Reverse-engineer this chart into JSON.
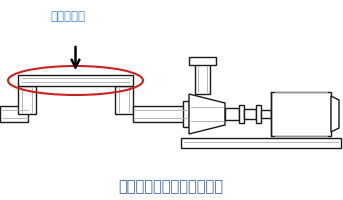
{
  "title": "鳥居配管によるエア溜まり",
  "label": "エア溜まり",
  "bg_color": "#ffffff",
  "line_color": "#1a1a1a",
  "gray_color": "#aaaaaa",
  "red_color": "#cc2222",
  "title_color": "#4466aa",
  "label_color": "#4488cc",
  "title_fontsize": 10.5,
  "label_fontsize": 8.5
}
